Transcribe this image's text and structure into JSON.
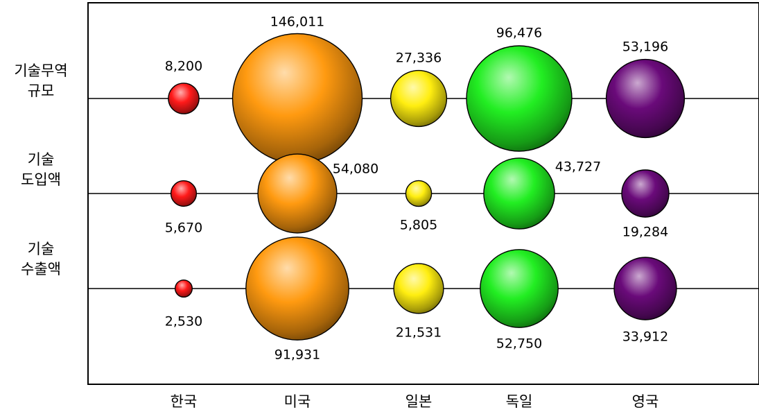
{
  "chart_data": {
    "type": "bubble",
    "title": "",
    "xlabel": "",
    "ylabel": "",
    "categories": [
      "한국",
      "미국",
      "일본",
      "독일",
      "영국"
    ],
    "colors": [
      "#ff1a1a",
      "#ff9a10",
      "#ffee10",
      "#22ee22",
      "#6a0a7a"
    ],
    "rows": [
      {
        "name": "기술무역\n규모",
        "values": [
          8200,
          146011,
          27336,
          96476,
          53196
        ],
        "value_labels": [
          "8,200",
          "146,011",
          "27,336",
          "96,476",
          "53,196"
        ]
      },
      {
        "name": "기술\n도입액",
        "values": [
          5670,
          54080,
          5805,
          43727,
          19284
        ],
        "value_labels": [
          "5,670",
          "54,080",
          "5,805",
          "43,727",
          "19,284"
        ]
      },
      {
        "name": "기술\n수출액",
        "values": [
          2530,
          91931,
          21531,
          52750,
          33912
        ],
        "value_labels": [
          "2,530",
          "91,931",
          "21,531",
          "52,750",
          "33,912"
        ]
      }
    ],
    "grid": false,
    "legend": "none"
  }
}
